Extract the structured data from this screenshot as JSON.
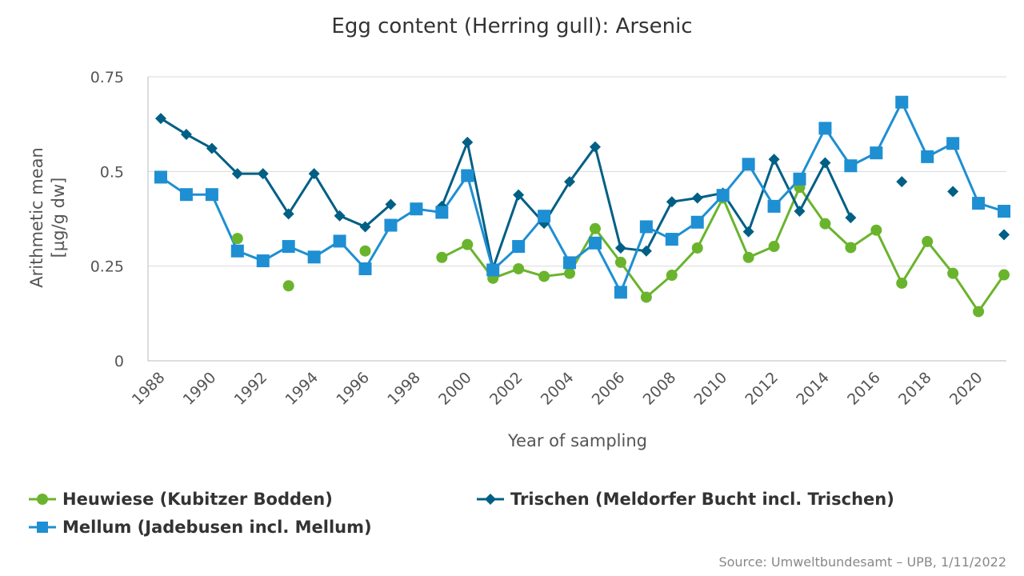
{
  "chart_data": {
    "type": "line",
    "title": "Egg content (Herring gull): Arsenic",
    "xlabel": "Year of sampling",
    "ylabel_line1": "Arithmetic mean",
    "ylabel_line2": "[µg/g dw]",
    "ylim": [
      0,
      0.75
    ],
    "xlim": [
      1988,
      2021
    ],
    "yticks": [
      {
        "v": 0,
        "label": "0"
      },
      {
        "v": 0.25,
        "label": "0.25"
      },
      {
        "v": 0.5,
        "label": "0.5"
      },
      {
        "v": 0.75,
        "label": "0.75"
      }
    ],
    "xticks": [
      1988,
      1990,
      1992,
      1994,
      1996,
      1998,
      2000,
      2002,
      2004,
      2006,
      2008,
      2010,
      2012,
      2014,
      2016,
      2018,
      2020
    ],
    "grid": "horizontal",
    "legend_position": "bottom",
    "series": [
      {
        "name": "Heuwiese (Kubitzer Bodden)",
        "color": "#6ab42d",
        "marker": "circle",
        "points": [
          [
            1991,
            0.323
          ],
          [
            1993,
            0.198
          ],
          [
            1996,
            0.29
          ],
          [
            1999,
            0.273
          ],
          [
            2000,
            0.307
          ],
          [
            2001,
            0.218
          ],
          [
            2002,
            0.243
          ],
          [
            2003,
            0.223
          ],
          [
            2004,
            0.231
          ],
          [
            2005,
            0.349
          ],
          [
            2006,
            0.26
          ],
          [
            2007,
            0.168
          ],
          [
            2008,
            0.226
          ],
          [
            2009,
            0.298
          ],
          [
            2010,
            0.43
          ],
          [
            2011,
            0.273
          ],
          [
            2012,
            0.302
          ],
          [
            2013,
            0.458
          ],
          [
            2014,
            0.362
          ],
          [
            2015,
            0.299
          ],
          [
            2016,
            0.345
          ],
          [
            2017,
            0.205
          ],
          [
            2018,
            0.315
          ],
          [
            2019,
            0.231
          ],
          [
            2020,
            0.13
          ],
          [
            2021,
            0.227
          ]
        ],
        "segments": [
          [
            1999,
            2021
          ]
        ]
      },
      {
        "name": "Trischen (Meldorfer Bucht incl. Trischen)",
        "color": "#005f85",
        "marker": "diamond",
        "points": [
          [
            1988,
            0.64
          ],
          [
            1989,
            0.598
          ],
          [
            1990,
            0.561
          ],
          [
            1991,
            0.494
          ],
          [
            1992,
            0.494
          ],
          [
            1993,
            0.388
          ],
          [
            1994,
            0.494
          ],
          [
            1995,
            0.383
          ],
          [
            1996,
            0.354
          ],
          [
            1997,
            0.413
          ],
          [
            1999,
            0.408
          ],
          [
            2000,
            0.577
          ],
          [
            2001,
            0.244
          ],
          [
            2002,
            0.438
          ],
          [
            2003,
            0.363
          ],
          [
            2004,
            0.473
          ],
          [
            2005,
            0.565
          ],
          [
            2006,
            0.298
          ],
          [
            2007,
            0.29
          ],
          [
            2008,
            0.42
          ],
          [
            2009,
            0.43
          ],
          [
            2010,
            0.443
          ],
          [
            2011,
            0.341
          ],
          [
            2012,
            0.532
          ],
          [
            2013,
            0.395
          ],
          [
            2014,
            0.523
          ],
          [
            2015,
            0.378
          ],
          [
            2017,
            0.473
          ],
          [
            2019,
            0.447
          ],
          [
            2021,
            0.333
          ]
        ],
        "segments": [
          [
            1988,
            1997
          ],
          [
            1999,
            2015
          ]
        ]
      },
      {
        "name": "Mellum (Jadebusen incl. Mellum)",
        "color": "#1e8fd2",
        "marker": "square",
        "points": [
          [
            1988,
            0.485
          ],
          [
            1989,
            0.439
          ],
          [
            1990,
            0.439
          ],
          [
            1991,
            0.29
          ],
          [
            1992,
            0.264
          ],
          [
            1993,
            0.302
          ],
          [
            1994,
            0.274
          ],
          [
            1995,
            0.316
          ],
          [
            1996,
            0.243
          ],
          [
            1997,
            0.358
          ],
          [
            1998,
            0.401
          ],
          [
            1999,
            0.392
          ],
          [
            2000,
            0.489
          ],
          [
            2001,
            0.24
          ],
          [
            2002,
            0.302
          ],
          [
            2003,
            0.382
          ],
          [
            2004,
            0.259
          ],
          [
            2005,
            0.311
          ],
          [
            2006,
            0.181
          ],
          [
            2007,
            0.354
          ],
          [
            2008,
            0.321
          ],
          [
            2009,
            0.366
          ],
          [
            2010,
            0.437
          ],
          [
            2011,
            0.519
          ],
          [
            2012,
            0.408
          ],
          [
            2013,
            0.48
          ],
          [
            2014,
            0.614
          ],
          [
            2015,
            0.515
          ],
          [
            2016,
            0.549
          ],
          [
            2017,
            0.683
          ],
          [
            2018,
            0.539
          ],
          [
            2019,
            0.574
          ],
          [
            2020,
            0.416
          ],
          [
            2021,
            0.395
          ]
        ],
        "segments": [
          [
            1988,
            2021
          ]
        ]
      }
    ]
  },
  "source": "Source: Umweltbundesamt – UPB, 1/11/2022"
}
